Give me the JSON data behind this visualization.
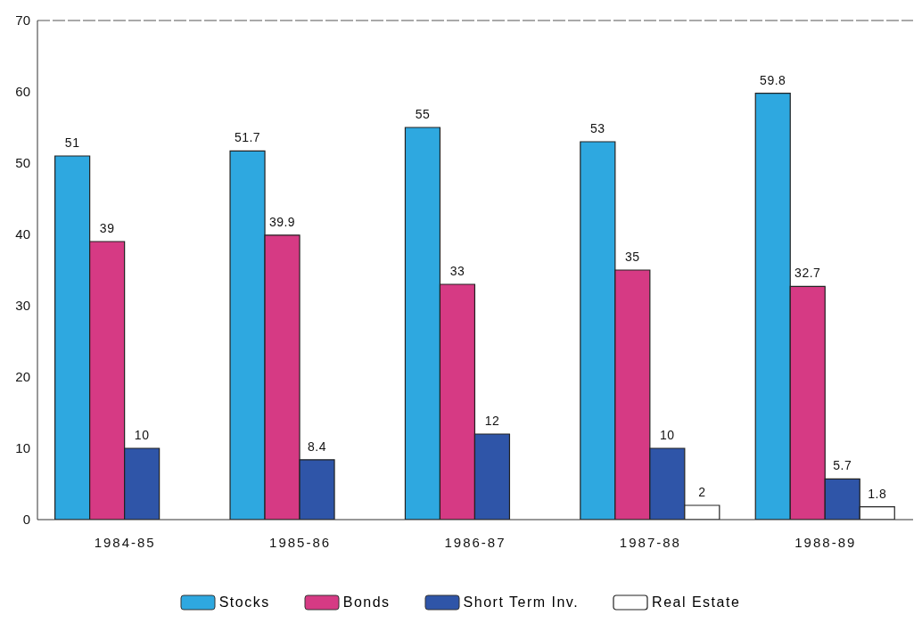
{
  "chart_data": {
    "type": "bar",
    "categories": [
      "1984-85",
      "1985-86",
      "1986-87",
      "1987-88",
      "1988-89"
    ],
    "series": [
      {
        "name": "Stocks",
        "color": "#2ea8e0",
        "values": [
          51,
          51.7,
          55,
          53,
          59.8
        ]
      },
      {
        "name": "Bonds",
        "color": "#d63a84",
        "values": [
          39,
          39.9,
          33,
          35,
          32.7
        ]
      },
      {
        "name": "Short Term Inv.",
        "color": "#2f55a8",
        "values": [
          10,
          8.4,
          12,
          10,
          5.7
        ]
      },
      {
        "name": "Real Estate",
        "color": "#ffffff",
        "values": [
          null,
          null,
          null,
          2,
          1.8
        ]
      }
    ],
    "ylim": [
      0,
      70
    ],
    "yticks": [
      0,
      10,
      20,
      30,
      40,
      50,
      60,
      70
    ],
    "data_labels": true,
    "legend": "bottom",
    "grid": false
  }
}
